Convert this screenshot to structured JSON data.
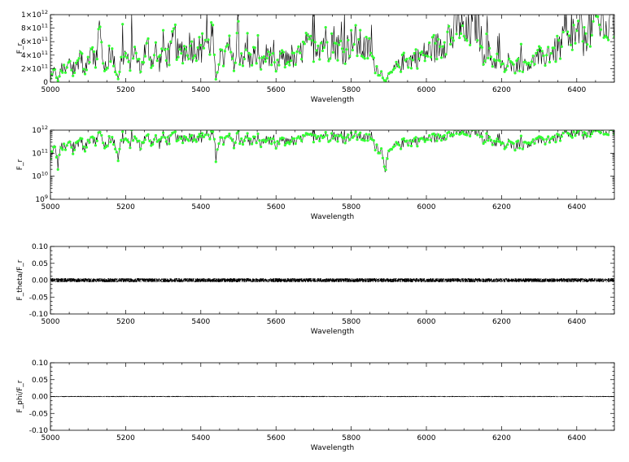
{
  "chart_data": [
    {
      "type": "scatter",
      "xlabel": "Wavelength",
      "ylabel": "F_r",
      "xlim": [
        5000,
        6500
      ],
      "ylim": [
        0,
        1000000000000.0
      ],
      "y_scale": "linear",
      "x_ticks": [
        "5000",
        "5200",
        "5400",
        "5600",
        "5800",
        "6000",
        "6200",
        "6400"
      ],
      "y_ticks": [
        {
          "value": 0,
          "mantissa": "0",
          "exponent": ""
        },
        {
          "value": 200000000000.0,
          "mantissa": "2×10",
          "exponent": "11"
        },
        {
          "value": 400000000000.0,
          "mantissa": "4×10",
          "exponent": "11"
        },
        {
          "value": 600000000000.0,
          "mantissa": "6×10",
          "exponent": "11"
        },
        {
          "value": 800000000000.0,
          "mantissa": "8×10",
          "exponent": "11"
        },
        {
          "value": 1000000000000.0,
          "mantissa": "1×10",
          "exponent": "12"
        }
      ],
      "line_color": "#000000",
      "marker_color": "#33ff33",
      "series_key": "spectrum"
    },
    {
      "type": "scatter",
      "xlabel": "Wavelength",
      "ylabel": "F_r",
      "xlim": [
        5000,
        6500
      ],
      "ylim": [
        1000000000.0,
        1000000000000.0
      ],
      "y_scale": "log",
      "x_ticks": [
        "5000",
        "5200",
        "5400",
        "5600",
        "5800",
        "6000",
        "6200",
        "6400"
      ],
      "y_ticks": [
        {
          "value": 1000000000.0,
          "mantissa": "10",
          "exponent": "9"
        },
        {
          "value": 10000000000.0,
          "mantissa": "10",
          "exponent": "10"
        },
        {
          "value": 100000000000.0,
          "mantissa": "10",
          "exponent": "11"
        },
        {
          "value": 1000000000000.0,
          "mantissa": "10",
          "exponent": "12"
        }
      ],
      "line_color": "#000000",
      "marker_color": "#33ff33",
      "series_key": "spectrum"
    },
    {
      "type": "line",
      "xlabel": "Wavelength",
      "ylabel": "F_theta/F_r",
      "xlim": [
        5000,
        6500
      ],
      "ylim": [
        -0.1,
        0.1
      ],
      "y_scale": "linear",
      "x_ticks": [
        "5000",
        "5200",
        "5400",
        "5600",
        "5800",
        "6000",
        "6200",
        "6400"
      ],
      "y_ticks": [
        {
          "value": -0.1,
          "mantissa": "-0.10",
          "exponent": ""
        },
        {
          "value": -0.05,
          "mantissa": "-0.05",
          "exponent": ""
        },
        {
          "value": 0,
          "mantissa": "0.00",
          "exponent": ""
        },
        {
          "value": 0.05,
          "mantissa": "0.05",
          "exponent": ""
        },
        {
          "value": 0.1,
          "mantissa": "0.10",
          "exponent": ""
        }
      ],
      "line_color": "#000000",
      "band": {
        "center": 0.0,
        "half_width": 0.006
      },
      "series_key": "ratio_theta"
    },
    {
      "type": "line",
      "xlabel": "Wavelength",
      "ylabel": "F_phi/F_r",
      "xlim": [
        5000,
        6500
      ],
      "ylim": [
        -0.1,
        0.1
      ],
      "y_scale": "linear",
      "x_ticks": [
        "5000",
        "5200",
        "5400",
        "5600",
        "5800",
        "6000",
        "6200",
        "6400"
      ],
      "y_ticks": [
        {
          "value": -0.1,
          "mantissa": "-0.10",
          "exponent": ""
        },
        {
          "value": -0.05,
          "mantissa": "-0.05",
          "exponent": ""
        },
        {
          "value": 0,
          "mantissa": "0.00",
          "exponent": ""
        },
        {
          "value": 0.05,
          "mantissa": "0.05",
          "exponent": ""
        },
        {
          "value": 0.1,
          "mantissa": "0.10",
          "exponent": ""
        }
      ],
      "line_color": "#000000",
      "band": {
        "center": 0.0,
        "half_width": 0.0015
      },
      "series_key": "ratio_phi"
    }
  ],
  "spectrum_samples": {
    "x": [
      5000,
      5010,
      5020,
      5030,
      5040,
      5050,
      5060,
      5070,
      5080,
      5090,
      5100,
      5110,
      5120,
      5130,
      5140,
      5150,
      5160,
      5170,
      5180,
      5190,
      5200,
      5210,
      5220,
      5230,
      5240,
      5250,
      5260,
      5270,
      5280,
      5290,
      5300,
      5310,
      5320,
      5330,
      5340,
      5350,
      5360,
      5370,
      5380,
      5390,
      5400,
      5410,
      5420,
      5430,
      5440,
      5450,
      5460,
      5470,
      5480,
      5490,
      5500,
      5510,
      5520,
      5530,
      5540,
      5550,
      5560,
      5570,
      5580,
      5590,
      5600,
      5610,
      5620,
      5630,
      5640,
      5650,
      5660,
      5670,
      5680,
      5690,
      5700,
      5710,
      5720,
      5730,
      5740,
      5750,
      5760,
      5770,
      5780,
      5790,
      5800,
      5810,
      5820,
      5830,
      5840,
      5850,
      5860,
      5870,
      5880,
      5890,
      5900,
      5910,
      5920,
      5930,
      5940,
      5950,
      5960,
      5970,
      5980,
      5990,
      6000,
      6010,
      6020,
      6030,
      6040,
      6050,
      6060,
      6070,
      6080,
      6090,
      6100,
      6110,
      6120,
      6130,
      6140,
      6150,
      6160,
      6170,
      6180,
      6190,
      6200,
      6210,
      6220,
      6230,
      6240,
      6250,
      6260,
      6270,
      6280,
      6290,
      6300,
      6310,
      6320,
      6330,
      6340,
      6350,
      6360,
      6370,
      6380,
      6390,
      6400,
      6410,
      6420,
      6430,
      6440,
      6450,
      6460,
      6470,
      6480,
      6490
    ],
    "y": [
      50000000000.0,
      180000000000.0,
      30000000000.0,
      220000000000.0,
      150000000000.0,
      300000000000.0,
      120000000000.0,
      250000000000.0,
      450000000000.0,
      100000000000.0,
      350000000000.0,
      650000000000.0,
      200000000000.0,
      800000000000.0,
      320000000000.0,
      150000000000.0,
      480000000000.0,
      280000000000.0,
      60000000000.0,
      380000000000.0,
      400000000000.0,
      240000000000.0,
      500000000000.0,
      340000000000.0,
      190000000000.0,
      440000000000.0,
      520000000000.0,
      310000000000.0,
      460000000000.0,
      260000000000.0,
      540000000000.0,
      360000000000.0,
      420000000000.0,
      680000000000.0,
      390000000000.0,
      500000000000.0,
      450000000000.0,
      560000000000.0,
      490000000000.0,
      580000000000.0,
      430000000000.0,
      660000000000.0,
      510000000000.0,
      740000000000.0,
      30000000000.0,
      400000000000.0,
      320000000000.0,
      480000000000.0,
      350000000000.0,
      290000000000.0,
      460000000000.0,
      380000000000.0,
      440000000000.0,
      300000000000.0,
      410000000000.0,
      330000000000.0,
      260000000000.0,
      370000000000.0,
      450000000000.0,
      340000000000.0,
      120000000000.0,
      400000000000.0,
      310000000000.0,
      360000000000.0,
      430000000000.0,
      280000000000.0,
      390000000000.0,
      460000000000.0,
      520000000000.0,
      500000000000.0,
      550000000000.0,
      600000000000.0,
      580000000000.0,
      620000000000.0,
      540000000000.0,
      640000000000.0,
      570000000000.0,
      510000000000.0,
      460000000000.0,
      530000000000.0,
      560000000000.0,
      610000000000.0,
      550000000000.0,
      520000000000.0,
      480000000000.0,
      500000000000.0,
      260000000000.0,
      190000000000.0,
      130000000000.0,
      20000000000.0,
      90000000000.0,
      160000000000.0,
      220000000000.0,
      250000000000.0,
      310000000000.0,
      290000000000.0,
      340000000000.0,
      380000000000.0,
      350000000000.0,
      410000000000.0,
      440000000000.0,
      470000000000.0,
      500000000000.0,
      530000000000.0,
      560000000000.0,
      640000000000.0,
      720000000000.0,
      660000000000.0,
      880000000000.0,
      940000000000.0,
      650000000000.0,
      710000000000.0,
      820000000000.0,
      960000000000.0,
      880000000000.0,
      400000000000.0,
      520000000000.0,
      380000000000.0,
      290000000000.0,
      340000000000.0,
      240000000000.0,
      210000000000.0,
      260000000000.0,
      200000000000.0,
      250000000000.0,
      290000000000.0,
      230000000000.0,
      300000000000.0,
      270000000000.0,
      340000000000.0,
      380000000000.0,
      310000000000.0,
      420000000000.0,
      480000000000.0,
      440000000000.0,
      500000000000.0,
      560000000000.0,
      620000000000.0,
      530000000000.0,
      760000000000.0,
      610000000000.0,
      840000000000.0,
      580000000000.0,
      960000000000.0,
      720000000000.0,
      980000000000.0,
      800000000000.0,
      990000000000.0,
      680000000000.0,
      950000000000.0
    ]
  }
}
